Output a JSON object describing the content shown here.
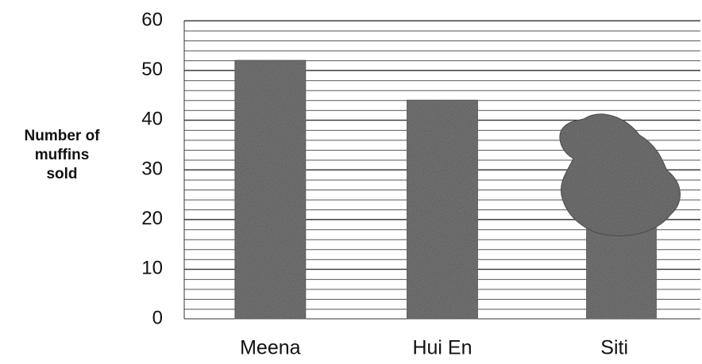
{
  "chart_data": {
    "type": "bar",
    "y_label": [
      "Number of",
      "muffins",
      "sold"
    ],
    "categories": [
      "Meena",
      "Hui En",
      "Siti"
    ],
    "values": [
      52,
      44,
      null
    ],
    "color": "#7a7a7a",
    "ylim": [
      0,
      60
    ],
    "yticks": [
      0,
      10,
      20,
      30,
      40,
      50,
      60
    ],
    "grid": true
  }
}
